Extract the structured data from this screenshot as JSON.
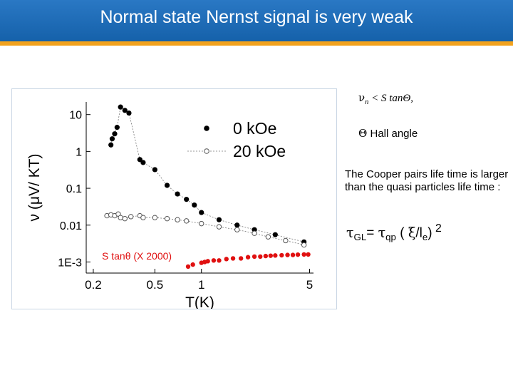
{
  "slide": {
    "title": "Normal state Nernst signal is very weak",
    "colors": {
      "header_blue": "#1561aa",
      "header_stripe": "#f2a21d"
    }
  },
  "notes": {
    "eq1": {
      "nu": "ν",
      "sub": "n",
      "rest": " < S tanΘ,"
    },
    "hall": {
      "theta": "Θ",
      "label": " Hall angle"
    },
    "cooper": "The Cooper pairs life time is larger than the quasi particles life time  :",
    "eq2": {
      "tau": "τ",
      "sub_gl": "GL",
      "eq": "= ",
      "tau2": "τ",
      "sub_qp": "qp",
      "paren_open": " ( ",
      "xi": "ξ",
      "slash": "/l",
      "sub_e": "e",
      "paren_close": ")",
      "sup": " 2"
    }
  },
  "chart_data": {
    "type": "scatter",
    "x_scale": "log",
    "y_scale": "log",
    "xlim": [
      0.18,
      5.3
    ],
    "ylim": [
      0.0005,
      22
    ],
    "xlabel": "T(K)",
    "ylabel": "ν (μV/ KT)",
    "x_ticks": [
      {
        "value": 0.2,
        "label": "0.2"
      },
      {
        "value": 0.5,
        "label": "0.5"
      },
      {
        "value": 1,
        "label": "1"
      },
      {
        "value": 5,
        "label": "5"
      }
    ],
    "y_ticks": [
      {
        "value": 10,
        "label": "10"
      },
      {
        "value": 1,
        "label": "1"
      },
      {
        "value": 0.1,
        "label": "0.1"
      },
      {
        "value": 0.01,
        "label": "0.01"
      },
      {
        "value": 0.001,
        "label": "1E-3"
      }
    ],
    "legend_position": "top-right",
    "series": [
      {
        "name": "0 kOe",
        "style": "filled-circle",
        "color": "#000000",
        "points": [
          [
            0.26,
            1.5
          ],
          [
            0.265,
            2.2
          ],
          [
            0.275,
            3.0
          ],
          [
            0.285,
            4.5
          ],
          [
            0.3,
            16.0
          ],
          [
            0.32,
            13.0
          ],
          [
            0.34,
            11.0
          ],
          [
            0.4,
            0.6
          ],
          [
            0.42,
            0.5
          ],
          [
            0.5,
            0.32
          ],
          [
            0.6,
            0.12
          ],
          [
            0.7,
            0.07
          ],
          [
            0.8,
            0.05
          ],
          [
            0.9,
            0.035
          ],
          [
            1.0,
            0.022
          ],
          [
            1.3,
            0.014
          ],
          [
            1.7,
            0.01
          ],
          [
            2.2,
            0.0075
          ],
          [
            3.0,
            0.0055
          ],
          [
            4.6,
            0.0035
          ]
        ]
      },
      {
        "name": "20 kOe",
        "style": "open-circle-dotted-line",
        "color": "#555555",
        "points": [
          [
            0.245,
            0.018
          ],
          [
            0.26,
            0.019
          ],
          [
            0.275,
            0.018
          ],
          [
            0.29,
            0.02
          ],
          [
            0.3,
            0.016
          ],
          [
            0.32,
            0.015
          ],
          [
            0.35,
            0.017
          ],
          [
            0.4,
            0.018
          ],
          [
            0.42,
            0.016
          ],
          [
            0.5,
            0.016
          ],
          [
            0.6,
            0.015
          ],
          [
            0.7,
            0.014
          ],
          [
            0.8,
            0.013
          ],
          [
            1.0,
            0.011
          ],
          [
            1.3,
            0.009
          ],
          [
            1.7,
            0.0075
          ],
          [
            2.2,
            0.006
          ],
          [
            2.7,
            0.0048
          ],
          [
            3.5,
            0.0038
          ],
          [
            4.6,
            0.0029
          ]
        ]
      },
      {
        "name": "S tanθ (X 2000)",
        "style": "red-dense",
        "color": "#e01010",
        "points": [
          [
            0.82,
            0.00075
          ],
          [
            0.88,
            0.00085
          ],
          [
            1.0,
            0.00095
          ],
          [
            1.05,
            0.001
          ],
          [
            1.1,
            0.00105
          ],
          [
            1.2,
            0.0011
          ],
          [
            1.3,
            0.0011
          ],
          [
            1.45,
            0.0012
          ],
          [
            1.6,
            0.00125
          ],
          [
            1.8,
            0.00125
          ],
          [
            2.0,
            0.00135
          ],
          [
            2.2,
            0.0014
          ],
          [
            2.4,
            0.0014
          ],
          [
            2.6,
            0.00145
          ],
          [
            2.8,
            0.00148
          ],
          [
            3.0,
            0.0015
          ],
          [
            3.3,
            0.00152
          ],
          [
            3.6,
            0.00155
          ],
          [
            3.9,
            0.00155
          ],
          [
            4.2,
            0.00158
          ],
          [
            4.6,
            0.0016
          ],
          [
            4.9,
            0.0016
          ]
        ]
      }
    ]
  }
}
